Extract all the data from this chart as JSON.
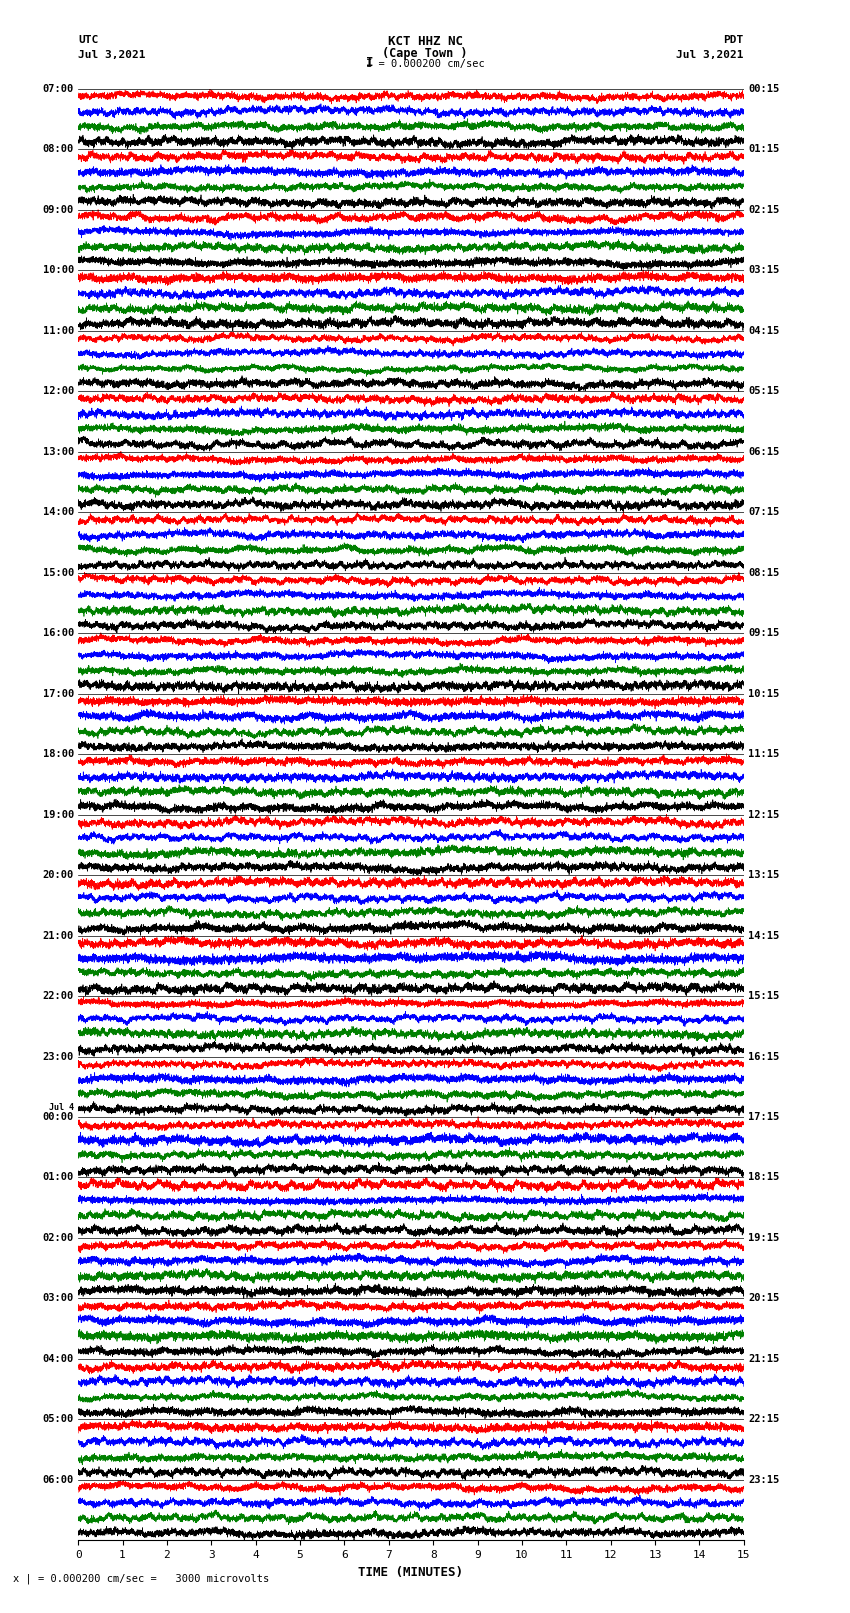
{
  "title_line1": "KCT HHZ NC",
  "title_line2": "(Cape Town )",
  "title_scale": "I = 0.000200 cm/sec",
  "left_label_top": "UTC",
  "left_label_date": "Jul 3,2021",
  "right_label_top": "PDT",
  "right_label_date": "Jul 3,2021",
  "utc_times": [
    "07:00",
    "08:00",
    "09:00",
    "10:00",
    "11:00",
    "12:00",
    "13:00",
    "14:00",
    "15:00",
    "16:00",
    "17:00",
    "18:00",
    "19:00",
    "20:00",
    "21:00",
    "22:00",
    "23:00",
    "Jul 4\n00:00",
    "01:00",
    "02:00",
    "03:00",
    "04:00",
    "05:00",
    "06:00"
  ],
  "pdt_times": [
    "00:15",
    "01:15",
    "02:15",
    "03:15",
    "04:15",
    "05:15",
    "06:15",
    "07:15",
    "08:15",
    "09:15",
    "10:15",
    "11:15",
    "12:15",
    "13:15",
    "14:15",
    "15:15",
    "16:15",
    "17:15",
    "18:15",
    "19:15",
    "20:15",
    "21:15",
    "22:15",
    "23:15"
  ],
  "xlabel": "TIME (MINUTES)",
  "scale_label": "x | = 0.000200 cm/sec =   3000 microvolts",
  "xmin": 0,
  "xmax": 15,
  "xticks": [
    0,
    1,
    2,
    3,
    4,
    5,
    6,
    7,
    8,
    9,
    10,
    11,
    12,
    13,
    14,
    15
  ],
  "num_traces": 24,
  "bg_color": "#ffffff",
  "sub_colors": [
    "red",
    "blue",
    "green",
    "black"
  ],
  "num_sub": 4,
  "title_fontsize": 9,
  "label_fontsize": 8,
  "tick_fontsize": 8
}
